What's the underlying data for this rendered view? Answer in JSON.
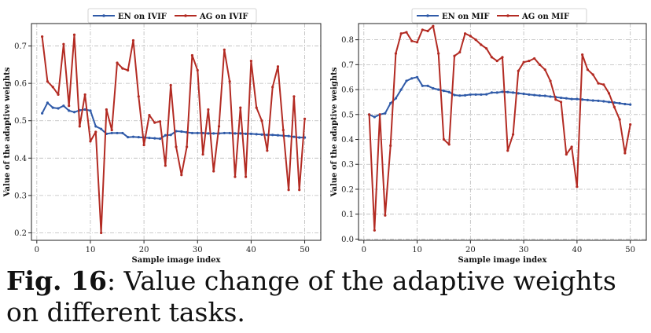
{
  "chart_data": [
    {
      "type": "line",
      "title": "",
      "xlabel": "Sample image index",
      "ylabel": "Value of the adaptive weights",
      "xlim": [
        -1,
        53
      ],
      "ylim": [
        0.18,
        0.76
      ],
      "xticks": [
        0,
        10,
        20,
        30,
        40,
        50
      ],
      "yticks": [
        0.2,
        0.3,
        0.4,
        0.5,
        0.6,
        0.7
      ],
      "ytick_labels": [
        "0.2",
        "0.3",
        "0.4",
        "0.5",
        "0.6",
        "0.7"
      ],
      "grid": true,
      "legend_position": "top-center",
      "x": [
        1,
        2,
        3,
        4,
        5,
        6,
        7,
        8,
        9,
        10,
        11,
        12,
        13,
        14,
        15,
        16,
        17,
        18,
        19,
        20,
        21,
        22,
        23,
        24,
        25,
        26,
        27,
        28,
        29,
        30,
        31,
        32,
        33,
        34,
        35,
        36,
        37,
        38,
        39,
        40,
        41,
        42,
        43,
        44,
        45,
        46,
        47,
        48,
        49,
        50
      ],
      "series": [
        {
          "name": "EN on IVIF",
          "color": "#2f5aa8",
          "values": [
            0.52,
            0.548,
            0.535,
            0.533,
            0.54,
            0.527,
            0.523,
            0.528,
            0.53,
            0.527,
            0.485,
            0.478,
            0.465,
            0.467,
            0.467,
            0.467,
            0.456,
            0.457,
            0.456,
            0.455,
            0.454,
            0.453,
            0.452,
            0.461,
            0.462,
            0.472,
            0.471,
            0.469,
            0.467,
            0.467,
            0.467,
            0.466,
            0.466,
            0.466,
            0.467,
            0.467,
            0.466,
            0.466,
            0.465,
            0.465,
            0.464,
            0.463,
            0.462,
            0.462,
            0.461,
            0.46,
            0.459,
            0.457,
            0.455,
            0.455
          ]
        },
        {
          "name": "AG on IVIF",
          "color": "#b32b23",
          "values": [
            0.725,
            0.605,
            0.59,
            0.57,
            0.705,
            0.54,
            0.73,
            0.485,
            0.57,
            0.445,
            0.47,
            0.2,
            0.53,
            0.475,
            0.655,
            0.64,
            0.635,
            0.715,
            0.565,
            0.435,
            0.515,
            0.495,
            0.498,
            0.38,
            0.595,
            0.43,
            0.355,
            0.43,
            0.675,
            0.635,
            0.41,
            0.53,
            0.365,
            0.485,
            0.69,
            0.605,
            0.35,
            0.535,
            0.35,
            0.66,
            0.535,
            0.5,
            0.42,
            0.59,
            0.645,
            0.475,
            0.315,
            0.565,
            0.315,
            0.505
          ]
        }
      ]
    },
    {
      "type": "line",
      "title": "",
      "xlabel": "Sample image index",
      "ylabel": "Value of the adaptive weights",
      "xlim": [
        -1,
        53
      ],
      "ylim": [
        -0.005,
        0.865
      ],
      "xticks": [
        0,
        10,
        20,
        30,
        40,
        50
      ],
      "yticks": [
        0.0,
        0.1,
        0.2,
        0.3,
        0.4,
        0.5,
        0.6,
        0.7,
        0.8
      ],
      "ytick_labels": [
        "0.0",
        "0.1",
        "0.2",
        "0.3",
        "0.4",
        "0.5",
        "0.6",
        "0.7",
        "0.8"
      ],
      "grid": true,
      "legend_position": "top-center",
      "x": [
        1,
        2,
        3,
        4,
        5,
        6,
        7,
        8,
        9,
        10,
        11,
        12,
        13,
        14,
        15,
        16,
        17,
        18,
        19,
        20,
        21,
        22,
        23,
        24,
        25,
        26,
        27,
        28,
        29,
        30,
        31,
        32,
        33,
        34,
        35,
        36,
        37,
        38,
        39,
        40,
        41,
        42,
        43,
        44,
        45,
        46,
        47,
        48,
        49,
        50
      ],
      "series": [
        {
          "name": "EN on MIF",
          "color": "#2f5aa8",
          "values": [
            0.5,
            0.49,
            0.5,
            0.505,
            0.545,
            0.565,
            0.6,
            0.635,
            0.645,
            0.65,
            0.615,
            0.615,
            0.605,
            0.6,
            0.595,
            0.59,
            0.578,
            0.576,
            0.577,
            0.58,
            0.58,
            0.58,
            0.581,
            0.588,
            0.588,
            0.591,
            0.59,
            0.588,
            0.585,
            0.583,
            0.58,
            0.578,
            0.576,
            0.575,
            0.572,
            0.57,
            0.567,
            0.565,
            0.562,
            0.562,
            0.56,
            0.558,
            0.556,
            0.555,
            0.553,
            0.55,
            0.548,
            0.545,
            0.542,
            0.54
          ]
        },
        {
          "name": "AG on MIF",
          "color": "#b32b23",
          "values": [
            0.5,
            0.035,
            0.5,
            0.095,
            0.375,
            0.745,
            0.825,
            0.83,
            0.795,
            0.79,
            0.84,
            0.835,
            0.855,
            0.745,
            0.4,
            0.38,
            0.735,
            0.75,
            0.825,
            0.815,
            0.8,
            0.78,
            0.765,
            0.73,
            0.715,
            0.73,
            0.355,
            0.42,
            0.675,
            0.71,
            0.715,
            0.725,
            0.7,
            0.68,
            0.635,
            0.56,
            0.55,
            0.34,
            0.37,
            0.21,
            0.74,
            0.68,
            0.66,
            0.625,
            0.62,
            0.585,
            0.53,
            0.48,
            0.345,
            0.46
          ]
        }
      ]
    }
  ],
  "caption": {
    "label": "Fig. 16",
    "text": ": Value change of the adaptive weights on different tasks."
  }
}
